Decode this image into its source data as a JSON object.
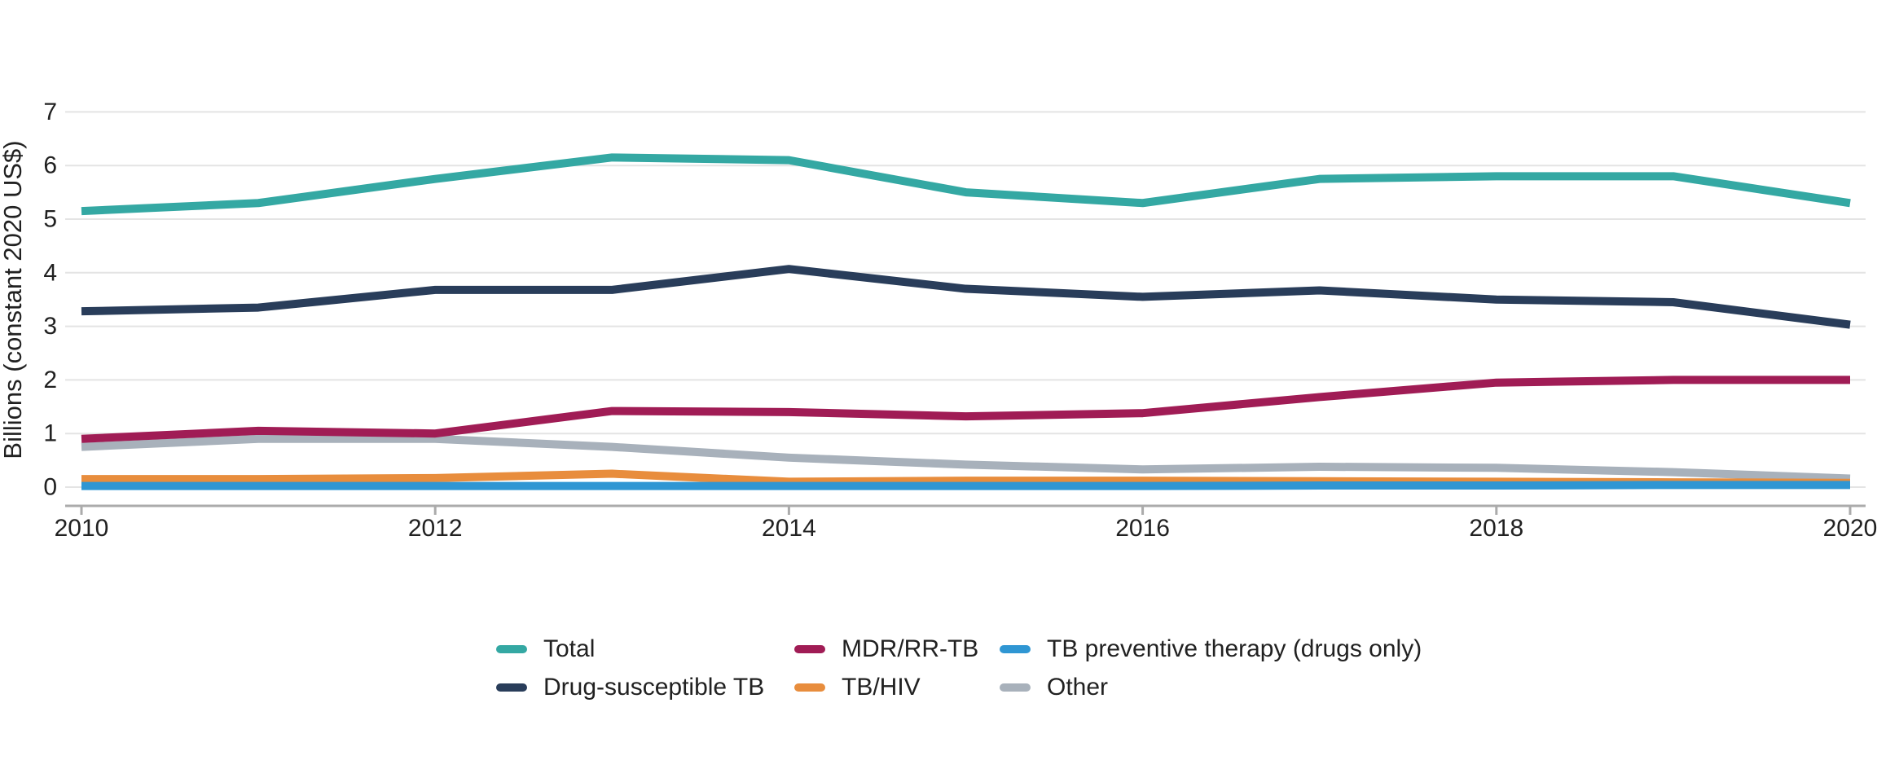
{
  "chart_data": {
    "type": "line",
    "title": "",
    "ylabel": "Billions (constant 2020 US$)",
    "xlabel": "",
    "ylim": [
      0,
      7
    ],
    "yticks": [
      7,
      6,
      5,
      4,
      3,
      2,
      1,
      0
    ],
    "xticks": [
      2010,
      2012,
      2014,
      2016,
      2018,
      2020
    ],
    "x": [
      2010,
      2011,
      2012,
      2013,
      2014,
      2015,
      2016,
      2017,
      2018,
      2019,
      2020
    ],
    "series": [
      {
        "name": "Total",
        "color": "#34A8A3",
        "values": [
          5.15,
          5.3,
          5.75,
          6.15,
          6.1,
          5.5,
          5.3,
          5.75,
          5.8,
          5.8,
          5.3
        ]
      },
      {
        "name": "Drug-susceptible TB",
        "color": "#293D5A",
        "values": [
          3.28,
          3.35,
          3.68,
          3.68,
          4.07,
          3.7,
          3.55,
          3.67,
          3.5,
          3.45,
          3.03
        ]
      },
      {
        "name": "MDR/RR-TB",
        "color": "#A01C55",
        "values": [
          0.9,
          1.05,
          1.0,
          1.42,
          1.4,
          1.32,
          1.38,
          1.68,
          1.95,
          2.0,
          2.0
        ]
      },
      {
        "name": "TB/HIV",
        "color": "#E88D3D",
        "values": [
          0.15,
          0.15,
          0.17,
          0.25,
          0.1,
          0.12,
          0.12,
          0.11,
          0.1,
          0.09,
          0.08
        ]
      },
      {
        "name": "TB preventive therapy (drugs only)",
        "color": "#2F96D3",
        "values": [
          0.02,
          0.02,
          0.02,
          0.02,
          0.02,
          0.02,
          0.02,
          0.03,
          0.03,
          0.04,
          0.04
        ]
      },
      {
        "name": "Other",
        "color": "#A8B1BB",
        "values": [
          0.75,
          0.9,
          0.9,
          0.75,
          0.55,
          0.42,
          0.33,
          0.38,
          0.36,
          0.28,
          0.16
        ]
      }
    ],
    "draw_order": [
      "Other",
      "TB/HIV",
      "TB preventive therapy (drugs only)",
      "MDR/RR-TB",
      "Drug-susceptible TB",
      "Total"
    ],
    "grid": "horizontal",
    "legend_position": "bottom-center"
  },
  "legend_columns": [
    [
      "Total",
      "Drug-susceptible TB"
    ],
    [
      "MDR/RR-TB",
      "TB/HIV"
    ],
    [
      "TB preventive therapy (drugs only)",
      "Other"
    ]
  ],
  "colors": {
    "grid": "#E4E4E4",
    "axis": "#ABABAB",
    "text": "#212121",
    "background": "#FFFFFF"
  }
}
